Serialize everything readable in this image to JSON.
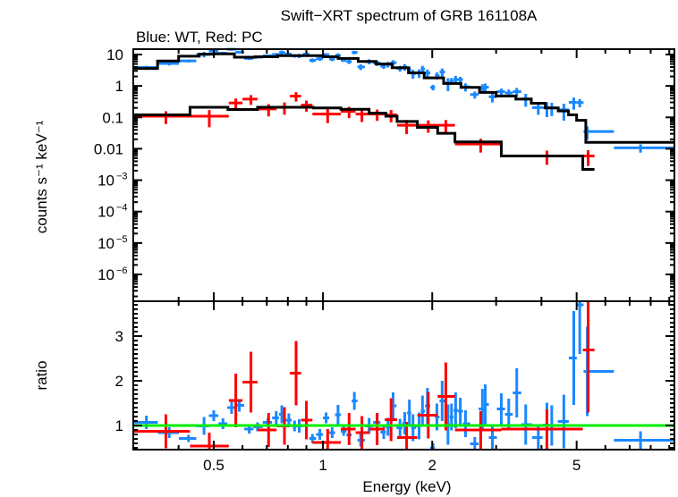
{
  "chart_data": {
    "type": "scatter",
    "title": "Swift−XRT spectrum of GRB 161108A",
    "subtitle": "Blue: WT, Red: PC",
    "xlabel": "Energy (keV)",
    "xscale": "log",
    "xlim": [
      0.3,
      9.3
    ],
    "x_ticks": [
      {
        "v": 0.5,
        "label": "0.5"
      },
      {
        "v": 1,
        "label": "1"
      },
      {
        "v": 2,
        "label": "2"
      },
      {
        "v": 5,
        "label": "5"
      }
    ],
    "panels": {
      "spectrum": {
        "ylabel": "counts s⁻¹ keV⁻¹",
        "yscale": "log",
        "ylim": [
          1.4e-07,
          14.8
        ],
        "y_ticks": [
          {
            "v": 10,
            "label": "10"
          },
          {
            "v": 1,
            "label": "1"
          },
          {
            "v": 0.1,
            "label": "0.1"
          },
          {
            "v": 0.01,
            "label": "0.01"
          },
          {
            "v": 0.001,
            "label": "10",
            "sup": "−3"
          },
          {
            "v": 0.0001,
            "label": "10",
            "sup": "−4"
          },
          {
            "v": 1e-05,
            "label": "10",
            "sup": "−5"
          },
          {
            "v": 1e-06,
            "label": "10",
            "sup": "−6"
          }
        ]
      },
      "ratio": {
        "ylabel": "ratio",
        "ylim": [
          0.46,
          3.78
        ],
        "y_ticks": [
          {
            "v": 1,
            "label": "1"
          },
          {
            "v": 2,
            "label": "2"
          },
          {
            "v": 3,
            "label": "3"
          }
        ],
        "reference_line": 1
      }
    },
    "series": [
      {
        "name": "WT",
        "color": "#1a88ff",
        "model_edges": [
          0.3,
          0.35,
          0.4,
          0.456,
          0.5,
          0.57,
          0.65,
          0.75,
          1.0,
          1.1,
          1.25,
          1.4,
          1.55,
          1.72,
          1.9,
          2.15,
          2.4,
          2.7,
          3.0,
          3.4,
          3.75,
          4.1,
          4.45,
          4.75,
          5.0,
          5.3,
          9.3
        ],
        "model_values": [
          3.6,
          6.2,
          8.8,
          10.2,
          10.5,
          8.2,
          8.5,
          9.2,
          8.5,
          7.5,
          6,
          5,
          3.8,
          2.6,
          1.8,
          1.2,
          0.9,
          0.62,
          0.48,
          0.38,
          0.28,
          0.2,
          0.16,
          0.12,
          0.08,
          0.016
        ],
        "points_fields": [
          "energy",
          "ratio",
          "ratio_err"
        ],
        "points": [
          [
            0.326,
            1.07,
            0.15
          ],
          [
            0.377,
            0.84,
            0.12
          ],
          [
            0.426,
            0.71,
            0.08
          ],
          [
            0.47,
            0.99,
            0.2
          ],
          [
            0.5,
            1.22,
            0.12
          ],
          [
            0.53,
            1.04,
            0.12
          ],
          [
            0.56,
            1.4,
            0.14
          ],
          [
            0.588,
            1.45,
            0.14
          ],
          [
            0.626,
            0.92,
            0.1
          ],
          [
            0.66,
            0.97,
            0.1
          ],
          [
            0.705,
            1.07,
            0.1
          ],
          [
            0.743,
            1.17,
            0.15
          ],
          [
            0.77,
            1.25,
            0.2
          ],
          [
            0.805,
            1.12,
            0.15
          ],
          [
            0.835,
            0.99,
            0.12
          ],
          [
            0.86,
            0.99,
            0.15
          ],
          [
            0.9,
            1.12,
            0.12
          ],
          [
            0.935,
            0.71,
            0.1
          ],
          [
            0.98,
            0.8,
            0.12
          ],
          [
            1.02,
            1.17,
            0.12
          ],
          [
            1.06,
            0.84,
            0.12
          ],
          [
            1.1,
            1.24,
            0.22
          ],
          [
            1.14,
            0.87,
            0.1
          ],
          [
            1.18,
            0.79,
            0.12
          ],
          [
            1.22,
            1.55,
            0.2
          ],
          [
            1.27,
            0.67,
            0.14
          ],
          [
            1.34,
            0.99,
            0.18
          ],
          [
            1.41,
            1.07,
            0.2
          ],
          [
            1.47,
            0.85,
            0.15
          ],
          [
            1.51,
            0.97,
            0.2
          ],
          [
            1.56,
            1.44,
            0.3
          ],
          [
            1.63,
            0.95,
            0.2
          ],
          [
            1.68,
            1.05,
            0.25
          ],
          [
            1.73,
            1.28,
            0.3
          ],
          [
            1.77,
            0.95,
            0.3
          ],
          [
            1.84,
            0.99,
            0.3
          ],
          [
            1.88,
            1.32,
            0.35
          ],
          [
            1.94,
            1.44,
            0.4
          ],
          [
            2.01,
            0.5,
            0.1
          ],
          [
            2.06,
            1.19,
            0.3
          ],
          [
            2.13,
            1.55,
            0.45
          ],
          [
            2.21,
            1.02,
            0.45
          ],
          [
            2.26,
            1.19,
            0.3
          ],
          [
            2.32,
            1.34,
            0.4
          ],
          [
            2.39,
            1.32,
            0.3
          ],
          [
            2.47,
            1.04,
            0.3
          ],
          [
            2.62,
            0.59,
            0.15
          ],
          [
            2.75,
            1.37,
            0.45
          ],
          [
            2.8,
            1.47,
            0.45
          ],
          [
            2.93,
            0.73,
            0.25
          ],
          [
            3.1,
            1.37,
            0.35
          ],
          [
            3.25,
            1.25,
            0.35
          ],
          [
            3.42,
            1.73,
            0.55
          ],
          [
            3.62,
            1.02,
            0.45
          ],
          [
            3.92,
            0.73,
            0.3
          ],
          [
            4.14,
            1.01,
            0.5
          ],
          [
            4.27,
            1.0,
            0.45
          ],
          [
            4.61,
            1.09,
            0.6
          ],
          [
            4.91,
            2.51,
            1.05
          ],
          [
            5.1,
            3.7,
            1.1
          ],
          [
            5.35,
            2.21,
            1.0
          ],
          [
            7.5,
            0.67,
            0.2
          ]
        ]
      },
      {
        "name": "PC",
        "color": "#ff0000",
        "model_edges": [
          0.3,
          0.43,
          0.547,
          0.66,
          0.94,
          1.12,
          1.34,
          1.49,
          1.6,
          1.82,
          2.07,
          2.31,
          3.1,
          5.2,
          5.6
        ],
        "model_values": [
          0.12,
          0.21,
          0.177,
          0.21,
          0.2,
          0.18,
          0.136,
          0.109,
          0.074,
          0.048,
          0.031,
          0.0165,
          0.0059,
          0.0022
        ],
        "points_fields": [
          "energy",
          "e_lo",
          "e_hi",
          "counts",
          "ratio",
          "ratio_err"
        ],
        "points": [
          [
            0.369,
            0.3,
            0.43,
            0.109,
            0.87,
            0.38
          ],
          [
            0.486,
            0.43,
            0.55,
            0.109,
            0.54,
            0.3
          ],
          [
            0.575,
            0.55,
            0.6,
            0.287,
            1.56,
            0.6
          ],
          [
            0.633,
            0.6,
            0.66,
            0.38,
            1.97,
            0.68
          ],
          [
            0.708,
            0.66,
            0.745,
            0.185,
            0.9,
            0.38
          ],
          [
            0.783,
            0.745,
            0.81,
            0.21,
            0.99,
            0.42
          ],
          [
            0.843,
            0.81,
            0.87,
            0.475,
            2.17,
            0.72
          ],
          [
            0.9,
            0.87,
            0.935,
            0.246,
            1.12,
            0.43
          ],
          [
            1.03,
            0.935,
            1.12,
            0.127,
            0.62,
            0.3
          ],
          [
            1.18,
            1.12,
            1.23,
            0.155,
            0.92,
            0.36
          ],
          [
            1.28,
            1.23,
            1.34,
            0.127,
            0.84,
            0.37
          ],
          [
            1.41,
            1.34,
            1.48,
            0.127,
            0.92,
            0.36
          ],
          [
            1.54,
            1.48,
            1.6,
            0.12,
            1.13,
            0.48
          ],
          [
            1.7,
            1.6,
            1.82,
            0.056,
            0.73,
            0.35
          ],
          [
            1.95,
            1.82,
            2.07,
            0.056,
            1.23,
            0.52
          ],
          [
            2.18,
            2.07,
            2.31,
            0.056,
            1.65,
            0.76
          ],
          [
            2.72,
            2.31,
            3.1,
            0.0142,
            0.9,
            0.42
          ],
          [
            4.14,
            3.1,
            5.2,
            0.0059,
            0.92,
            0.44
          ],
          [
            5.38,
            5.2,
            5.6,
            0.0059,
            2.69,
            1.4
          ]
        ]
      }
    ],
    "model_color": "#000000",
    "reference_color": "#00ee00"
  }
}
